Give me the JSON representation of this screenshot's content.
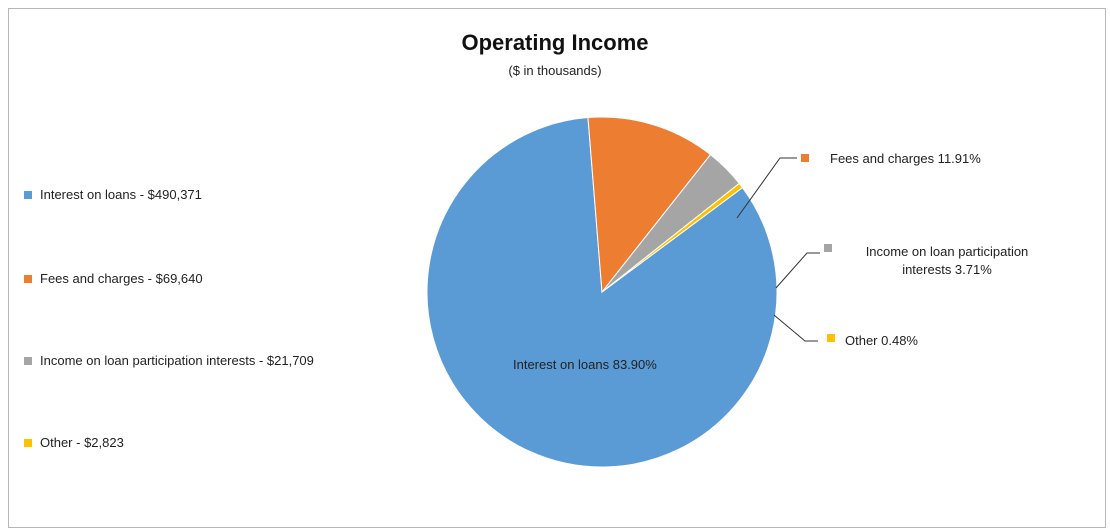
{
  "chart_data": {
    "type": "pie",
    "title": "Operating Income",
    "subtitle": "($ in thousands)",
    "slices": [
      {
        "label": "Interest on loans",
        "value": 490371,
        "percent": 83.9,
        "color": "#5b9bd5",
        "legend_text": "Interest on loans - $490,371",
        "data_label": "Interest on loans 83.90%"
      },
      {
        "label": "Fees and charges",
        "value": 69640,
        "percent": 11.91,
        "color": "#ed7d31",
        "legend_text": "Fees and charges - $69,640",
        "data_label": "Fees and charges 11.91%"
      },
      {
        "label": "Income on loan participation interests",
        "value": 21709,
        "percent": 3.71,
        "color": "#a5a5a5",
        "legend_text": "Income on loan participation interests - $21,709",
        "data_label_lines": [
          "Income on loan participation",
          "interests 3.71%"
        ]
      },
      {
        "label": "Other",
        "value": 2823,
        "percent": 0.48,
        "color": "#ffc000",
        "legend_text": "Other - $2,823",
        "data_label": "Other 0.48%"
      }
    ],
    "legend_position": "left"
  }
}
